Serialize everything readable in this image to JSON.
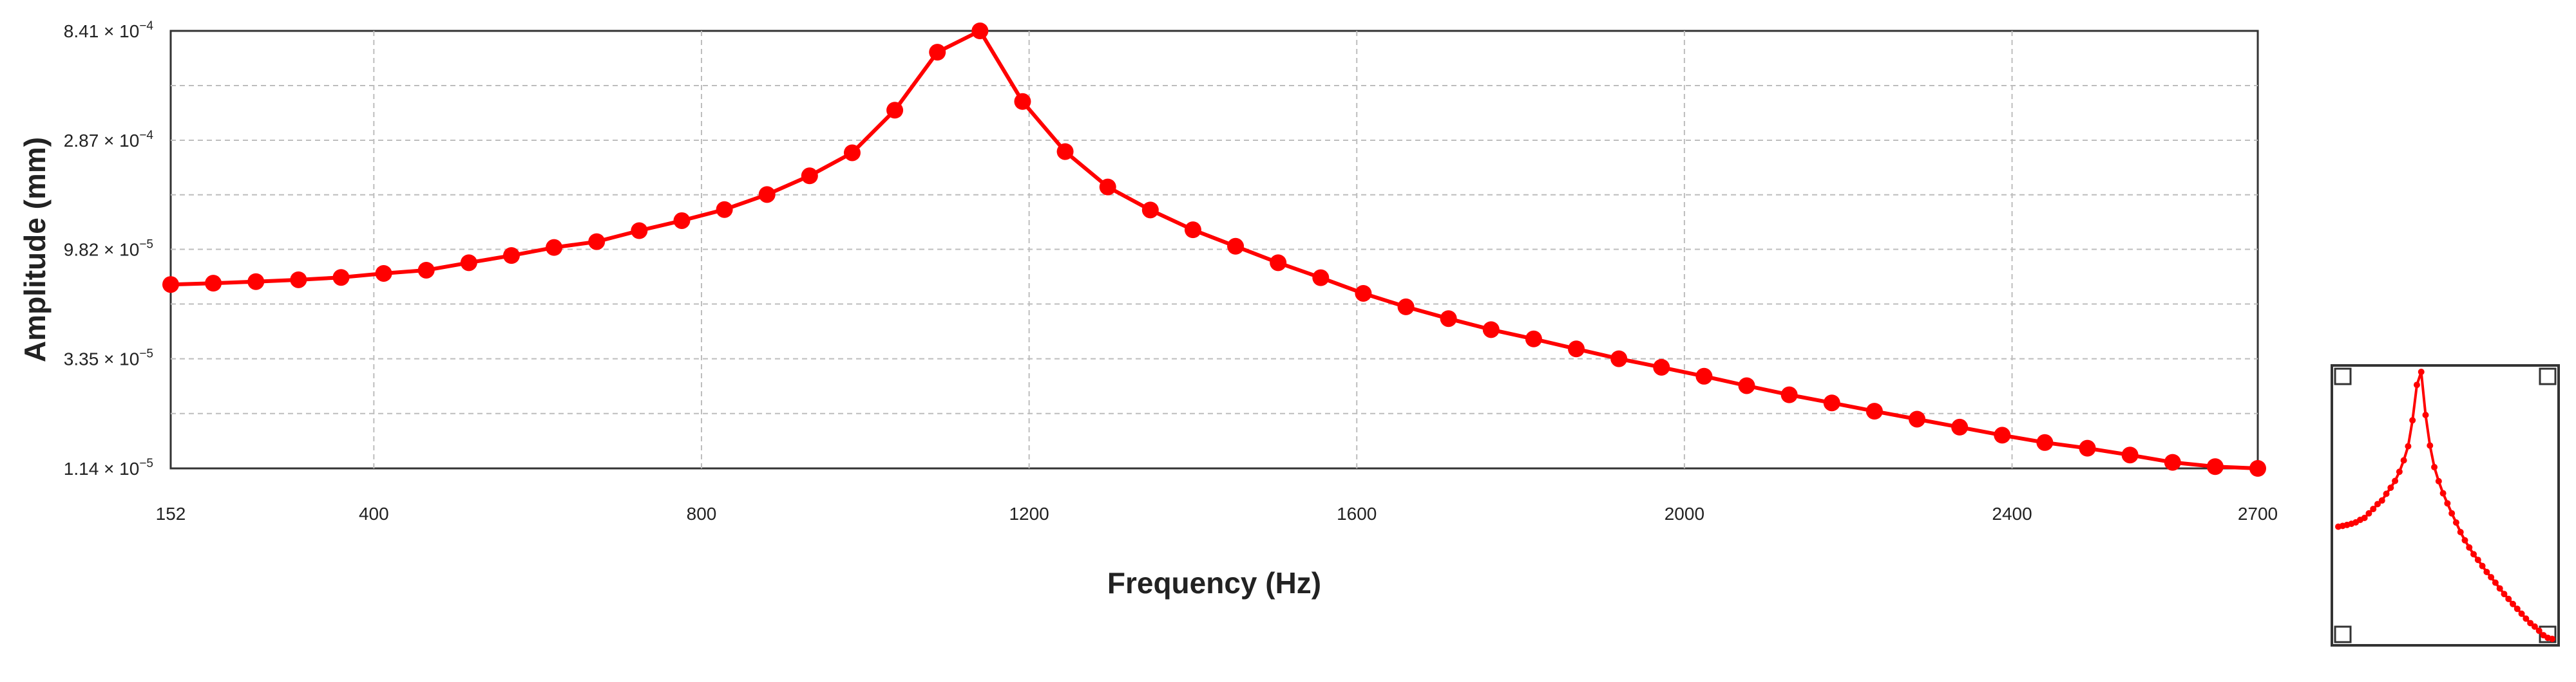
{
  "chart_data": {
    "type": "line",
    "xlabel": "Frequency (Hz)",
    "ylabel": "Amplitude (mm)",
    "y_scale": "log",
    "xlim": [
      152,
      2700
    ],
    "ylim": [
      1.14e-05,
      0.000841
    ],
    "x_ticks": [
      152,
      400,
      800,
      1200,
      1600,
      2000,
      2400,
      2700
    ],
    "x_tick_labels": [
      "152",
      "400",
      "800",
      "1200",
      "1600",
      "2000",
      "2400",
      "2700"
    ],
    "y_ticks": [
      1.14e-05,
      3.35e-05,
      9.82e-05,
      0.000287,
      0.000841
    ],
    "y_tick_labels": [
      {
        "mant": "1.14 × 10",
        "exp": "−5"
      },
      {
        "mant": "3.35 × 10",
        "exp": "−5"
      },
      {
        "mant": "9.82 × 10",
        "exp": "−5"
      },
      {
        "mant": "2.87 × 10",
        "exp": "−4"
      },
      {
        "mant": "8.41 × 10",
        "exp": "−4"
      }
    ],
    "grid": true,
    "line_color": "#ff0000",
    "series": [
      {
        "x": [
          152,
          204,
          256,
          308,
          360,
          412,
          464,
          516,
          568,
          620,
          672,
          724,
          776,
          828,
          880,
          932,
          984,
          1036,
          1088,
          1140,
          1192,
          1244,
          1296,
          1348,
          1400,
          1452,
          1504,
          1556,
          1608,
          1660,
          1712,
          1764,
          1816,
          1868,
          1920,
          1972,
          2024,
          2076,
          2128,
          2180,
          2232,
          2284,
          2336,
          2388,
          2440,
          2492,
          2544,
          2596,
          2648,
          2700
        ],
        "y": [
          6.95e-05,
          7.04e-05,
          7.15e-05,
          7.28e-05,
          7.45e-05,
          7.75e-05,
          8e-05,
          8.61e-05,
          9.24e-05,
          0.0001,
          0.0001059,
          0.000118,
          0.0001302,
          0.0001452,
          0.0001683,
          0.0002023,
          0.0002537,
          0.0003856,
          0.000682,
          0.000841,
          0.00042,
          0.0002567,
          0.0001813,
          0.0001446,
          0.000119,
          0.0001012,
          8.61e-05,
          7.43e-05,
          6.37e-05,
          5.58e-05,
          4.97e-05,
          4.46e-05,
          4.07e-05,
          3.69e-05,
          3.35e-05,
          3.08e-05,
          2.82e-05,
          2.57e-05,
          2.35e-05,
          2.17e-05,
          2e-05,
          1.85e-05,
          1.71e-05,
          1.58e-05,
          1.47e-05,
          1.39e-05,
          1.3e-05,
          1.21e-05,
          1.16e-05,
          1.14e-05
        ]
      }
    ]
  }
}
